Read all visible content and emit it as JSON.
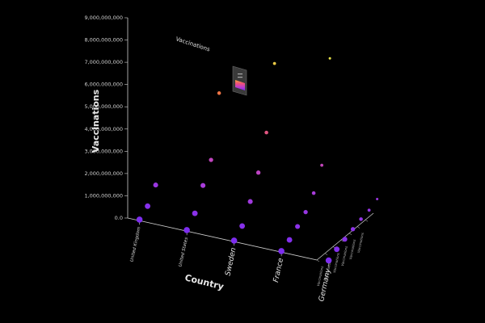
{
  "chart_data": {
    "type": "scatter",
    "title": "Vaccinations",
    "ylabel": "Vaccinations",
    "xlabel": "Country",
    "zlabel": "",
    "ylim": [
      0,
      9000000000
    ],
    "y_ticks": [
      "0.0",
      "1,000,000,000",
      "2,000,000,000",
      "3,000,000,000",
      "4,000,000,000",
      "5,000,000,000",
      "6,000,000,000",
      "7,000,000,000",
      "8,000,000,000",
      "9,000,000,000"
    ],
    "x_categories": [
      "United Kingdom",
      "United States",
      "Sweden",
      "France",
      "Germany"
    ],
    "z_tick_label": "Vaccinations",
    "colorscale": [
      "#7b2cf0",
      "#b13fd6",
      "#e0508a",
      "#f07a3a",
      "#e8e84a"
    ],
    "legend_placement": "top-center",
    "grid": false,
    "points": [
      {
        "country": "United Kingdom",
        "z": 0,
        "y": 50000000
      },
      {
        "country": "United Kingdom",
        "z": 1,
        "y": 350000000
      },
      {
        "country": "United Kingdom",
        "z": 2,
        "y": 1000000000
      },
      {
        "country": "United States",
        "z": 0,
        "y": 50000000
      },
      {
        "country": "United States",
        "z": 1,
        "y": 500000000
      },
      {
        "country": "United States",
        "z": 2,
        "y": 1450000000
      },
      {
        "country": "United States",
        "z": 3,
        "y": 2300000000
      },
      {
        "country": "United States",
        "z": 4,
        "y": 5000000000
      },
      {
        "country": "Sweden",
        "z": 0,
        "y": 50000000
      },
      {
        "country": "Sweden",
        "z": 1,
        "y": 400000000
      },
      {
        "country": "Sweden",
        "z": 2,
        "y": 1200000000
      },
      {
        "country": "Sweden",
        "z": 3,
        "y": 2200000000
      },
      {
        "country": "Sweden",
        "z": 4,
        "y": 3700000000
      },
      {
        "country": "Sweden",
        "z": 5,
        "y": 6500000000
      },
      {
        "country": "France",
        "z": 0,
        "y": 50000000
      },
      {
        "country": "France",
        "z": 1,
        "y": 250000000
      },
      {
        "country": "France",
        "z": 2,
        "y": 550000000
      },
      {
        "country": "France",
        "z": 3,
        "y": 900000000
      },
      {
        "country": "France",
        "z": 4,
        "y": 1450000000
      },
      {
        "country": "France",
        "z": 5,
        "y": 2400000000
      },
      {
        "country": "France",
        "z": 6,
        "y": 6900000000
      },
      {
        "country": "Germany",
        "z": 0,
        "y": 100000000
      },
      {
        "country": "Germany",
        "z": 1,
        "y": 300000000
      },
      {
        "country": "Germany",
        "z": 2,
        "y": 450000000
      },
      {
        "country": "Germany",
        "z": 3,
        "y": 600000000
      },
      {
        "country": "Germany",
        "z": 4,
        "y": 750000000
      },
      {
        "country": "Germany",
        "z": 5,
        "y": 850000000
      },
      {
        "country": "Germany",
        "z": 6,
        "y": 1050000000
      }
    ]
  }
}
